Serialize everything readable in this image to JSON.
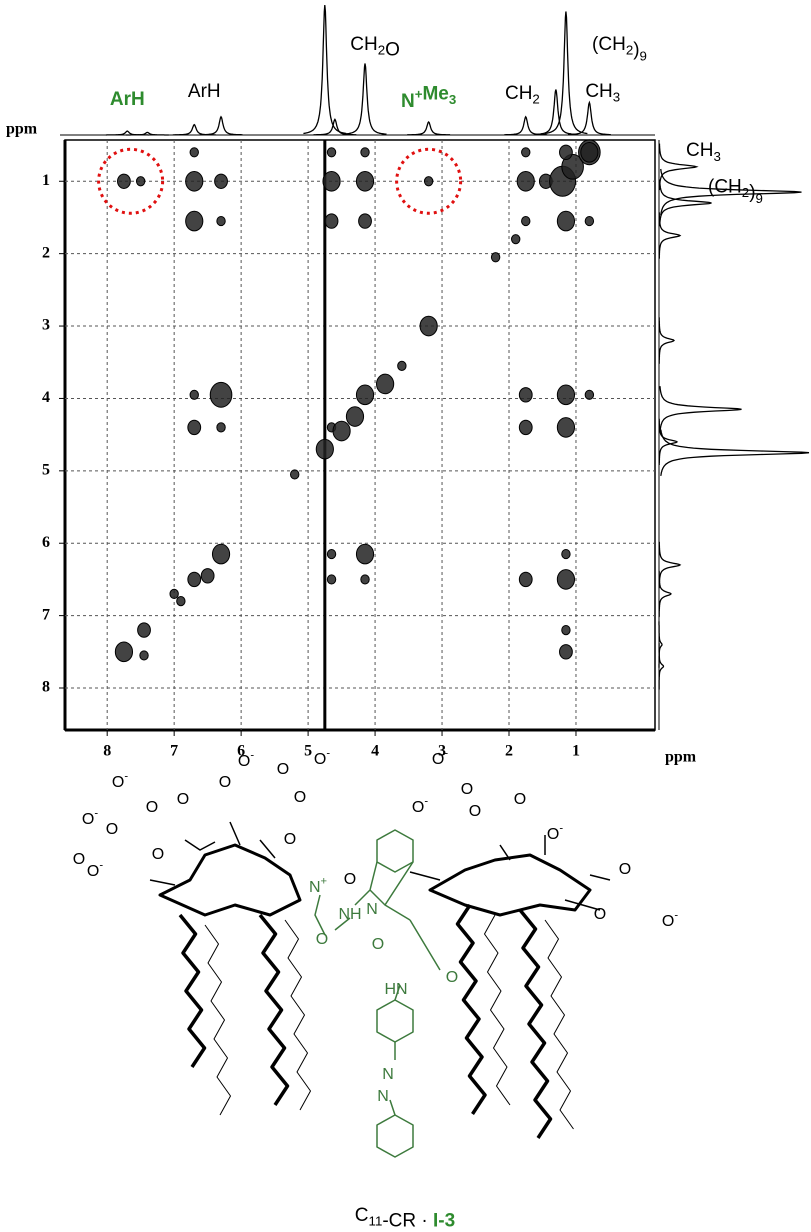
{
  "chart_data": {
    "type": "nmr2d",
    "xlabel": "ppm",
    "ylabel": "ppm",
    "xlim": [
      8.63,
      -0.18
    ],
    "ylim": [
      0.43,
      8.58
    ],
    "xticks": [
      8,
      7,
      6,
      5,
      4,
      3,
      2,
      1
    ],
    "yticks": [
      1,
      2,
      3,
      4,
      5,
      6,
      7,
      8
    ],
    "grid": true,
    "ridge_x": 4.75,
    "peaks": {
      "x": [
        7.75,
        7.5,
        6.7,
        6.3,
        4.65,
        4.15,
        3.2,
        1.75,
        1.45,
        1.2,
        1.05,
        0.8,
        6.7,
        4.65,
        4.15,
        1.75,
        1.15,
        0.8,
        6.7,
        6.3,
        4.65,
        4.15,
        1.75,
        1.15,
        0.8,
        6.7,
        6.3,
        4.15,
        1.75,
        1.15,
        0.8,
        6.7,
        6.3,
        4.65,
        1.75,
        1.15,
        6.3,
        4.65,
        4.15,
        1.15,
        6.7,
        4.65,
        4.15,
        1.75,
        1.15,
        7.45,
        1.15,
        7.75,
        7.45,
        1.15,
        3.2,
        2.2,
        1.9,
        5.2,
        4.75,
        4.5,
        4.3,
        3.85,
        3.6,
        6.9,
        6.5,
        7.0
      ],
      "y": [
        1.0,
        1.0,
        1.0,
        1.0,
        1.0,
        1.0,
        1.0,
        1.0,
        1.0,
        1.0,
        0.8,
        0.6,
        0.6,
        0.6,
        0.6,
        0.6,
        0.6,
        0.6,
        1.55,
        1.55,
        1.55,
        1.55,
        1.55,
        1.55,
        1.55,
        3.95,
        3.95,
        3.95,
        3.95,
        3.95,
        3.95,
        4.4,
        4.4,
        4.4,
        4.4,
        4.4,
        6.15,
        6.15,
        6.15,
        6.15,
        6.5,
        6.5,
        6.5,
        6.5,
        6.5,
        7.2,
        7.2,
        7.5,
        7.55,
        7.5,
        3.0,
        2.05,
        1.8,
        5.05,
        4.7,
        4.45,
        4.25,
        3.8,
        3.55,
        6.8,
        6.45,
        6.7
      ],
      "size": [
        2,
        1,
        3,
        2,
        3,
        3,
        1,
        3,
        2,
        5,
        4,
        4,
        1,
        1,
        1,
        1,
        2,
        3,
        3,
        1,
        2,
        2,
        1,
        3,
        1,
        1,
        4,
        3,
        2,
        3,
        1,
        2,
        1,
        1,
        2,
        3,
        3,
        1,
        3,
        1,
        2,
        1,
        1,
        2,
        3,
        2,
        1,
        3,
        1,
        2,
        3,
        1,
        1,
        1,
        3,
        3,
        3,
        3,
        1,
        1,
        2,
        1
      ]
    },
    "projection": {
      "x": [
        7.7,
        7.4,
        6.7,
        6.3,
        4.75,
        4.6,
        4.15,
        3.2,
        1.75,
        1.3,
        1.15,
        0.8
      ],
      "intensity": [
        3,
        2,
        8,
        14,
        100,
        12,
        55,
        10,
        14,
        35,
        95,
        25
      ]
    },
    "highlights": {
      "x": [
        7.65,
        3.2
      ],
      "y": [
        1.0,
        1.0
      ]
    },
    "top_labels": [
      {
        "x": 7.7,
        "parts": [
          {
            "t": "ArH"
          }
        ],
        "color": "#2e8b2e"
      },
      {
        "x": 6.55,
        "parts": [
          {
            "t": "ArH"
          }
        ],
        "color": "#000000"
      },
      {
        "x": 4.0,
        "parts": [
          {
            "t": "CH"
          },
          {
            "sub": "2"
          },
          {
            "t": "O"
          }
        ],
        "color": "#000000"
      },
      {
        "x": 3.2,
        "parts": [
          {
            "t": "N"
          },
          {
            "sup": "+"
          },
          {
            "t": "Me"
          },
          {
            "sub": "3"
          }
        ],
        "color": "#2e8b2e"
      },
      {
        "x": 1.8,
        "parts": [
          {
            "t": "CH"
          },
          {
            "sub": "2"
          }
        ],
        "color": "#000000"
      },
      {
        "x": 0.35,
        "parts": [
          {
            "t": "(CH"
          },
          {
            "sub": "2"
          },
          {
            "t": ")"
          },
          {
            "sub": "9"
          }
        ],
        "color": "#000000"
      },
      {
        "x": 0.6,
        "parts": [
          {
            "t": "CH"
          },
          {
            "sub": "3"
          }
        ],
        "color": "#000000"
      }
    ],
    "side_labels": [
      {
        "y": 0.75,
        "parts": [
          {
            "t": "CH"
          },
          {
            "sub": "3"
          }
        ]
      },
      {
        "y": 1.25,
        "parts": [
          {
            "t": "(CH"
          },
          {
            "sub": "2"
          },
          {
            "t": ")"
          },
          {
            "sub": "9"
          }
        ]
      }
    ]
  },
  "structure": {
    "labels": [
      {
        "parts": [
          {
            "t": "O"
          },
          {
            "sup": "-"
          }
        ]
      },
      {
        "parts": [
          {
            "t": "O"
          }
        ]
      },
      {
        "parts": [
          {
            "t": "O"
          },
          {
            "sup": "-"
          }
        ]
      },
      {
        "parts": [
          {
            "t": "O"
          }
        ]
      },
      {
        "parts": [
          {
            "t": "O"
          }
        ]
      },
      {
        "parts": [
          {
            "t": "O"
          },
          {
            "sup": "-"
          }
        ]
      },
      {
        "parts": [
          {
            "t": "O"
          }
        ]
      },
      {
        "parts": [
          {
            "t": "O"
          }
        ]
      },
      {
        "parts": [
          {
            "t": "O"
          }
        ]
      },
      {
        "parts": [
          {
            "t": "O"
          },
          {
            "sup": "-"
          }
        ]
      },
      {
        "parts": [
          {
            "t": "O"
          }
        ]
      },
      {
        "parts": [
          {
            "t": "O"
          }
        ]
      },
      {
        "parts": [
          {
            "t": "O"
          },
          {
            "sup": "-"
          }
        ]
      },
      {
        "parts": [
          {
            "t": "O"
          }
        ]
      },
      {
        "parts": [
          {
            "t": "O"
          }
        ]
      },
      {
        "parts": [
          {
            "t": "O"
          },
          {
            "sup": "-"
          }
        ]
      },
      {
        "parts": [
          {
            "t": "O"
          }
        ]
      },
      {
        "parts": [
          {
            "t": "O"
          },
          {
            "sup": "-"
          }
        ]
      },
      {
        "parts": [
          {
            "t": "O"
          }
        ]
      },
      {
        "parts": [
          {
            "t": "O"
          }
        ]
      },
      {
        "parts": [
          {
            "t": "O"
          },
          {
            "sup": "-"
          }
        ]
      },
      {
        "parts": [
          {
            "t": "O"
          }
        ]
      },
      {
        "parts": [
          {
            "t": "O"
          }
        ]
      },
      {
        "parts": [
          {
            "t": "O"
          },
          {
            "sup": "-"
          }
        ]
      },
      {
        "parts": [
          {
            "t": "N"
          },
          {
            "sup": "+"
          }
        ],
        "color": "#3d7a3d"
      },
      {
        "parts": [
          {
            "t": "O"
          }
        ],
        "color": "#3d7a3d"
      },
      {
        "parts": [
          {
            "t": "NH"
          }
        ],
        "color": "#3d7a3d"
      },
      {
        "parts": [
          {
            "t": "N"
          }
        ],
        "color": "#3d7a3d"
      },
      {
        "parts": [
          {
            "t": "O"
          }
        ],
        "color": "#3d7a3d"
      },
      {
        "parts": [
          {
            "t": "HN"
          }
        ],
        "color": "#3d7a3d"
      },
      {
        "parts": [
          {
            "t": "O"
          }
        ],
        "color": "#3d7a3d"
      },
      {
        "parts": [
          {
            "t": "N"
          }
        ],
        "color": "#3d7a3d"
      },
      {
        "parts": [
          {
            "t": "N"
          }
        ],
        "color": "#3d7a3d"
      }
    ],
    "caption": [
      {
        "t": "C"
      },
      {
        "sub": "11"
      },
      {
        "t": "-CR  ·  "
      },
      {
        "t": "I-3",
        "color": "#2e8b2e"
      }
    ]
  }
}
